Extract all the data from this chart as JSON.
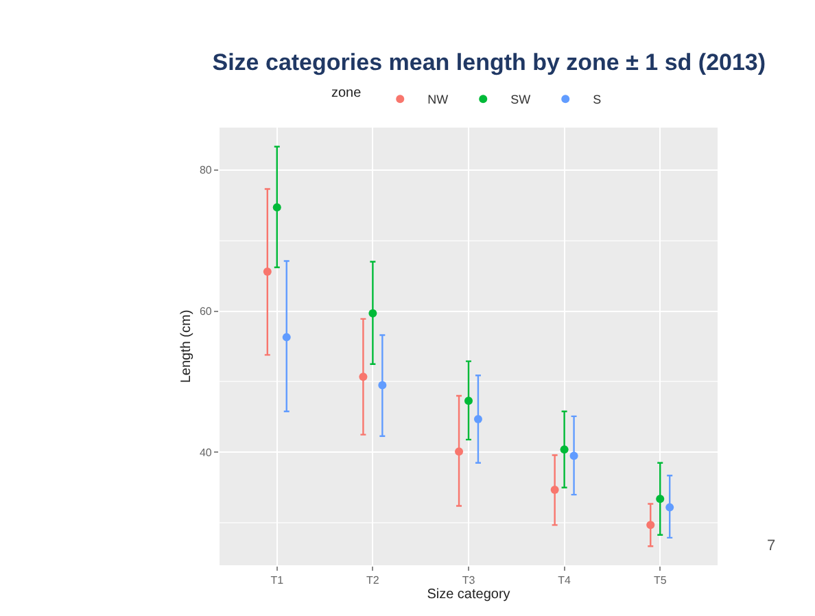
{
  "chart_data": {
    "type": "scatter",
    "title": "Size categories mean length by zone ± 1 sd (2013)",
    "xlabel": "Size category",
    "ylabel": "Length (cm)",
    "legend_title": "zone",
    "categories": [
      "T1",
      "T2",
      "T3",
      "T4",
      "T5"
    ],
    "series": [
      {
        "name": "NW",
        "color": "#f8766d",
        "values": [
          65.6,
          50.7,
          40.1,
          34.7,
          29.7
        ],
        "errors": [
          [
            53.8,
            77.3
          ],
          [
            42.5,
            58.9
          ],
          [
            32.4,
            48.0
          ],
          [
            29.7,
            39.6
          ],
          [
            26.7,
            32.7
          ]
        ]
      },
      {
        "name": "SW",
        "color": "#00ba38",
        "values": [
          74.7,
          59.7,
          47.3,
          40.4,
          33.4
        ],
        "errors": [
          [
            66.2,
            83.3
          ],
          [
            52.5,
            67.0
          ],
          [
            41.8,
            52.9
          ],
          [
            35.0,
            45.8
          ],
          [
            28.3,
            38.5
          ]
        ]
      },
      {
        "name": "S",
        "color": "#619cff",
        "values": [
          56.3,
          49.5,
          44.7,
          39.5,
          32.2
        ],
        "errors": [
          [
            45.8,
            67.1
          ],
          [
            42.3,
            56.6
          ],
          [
            38.5,
            50.9
          ],
          [
            34.0,
            45.1
          ],
          [
            27.9,
            36.7
          ]
        ]
      }
    ],
    "ylim": [
      24,
      86
    ],
    "yticks": [
      40,
      60,
      80
    ],
    "grid": true,
    "legend": "top",
    "marker": "circle",
    "annotations": [
      "7"
    ]
  }
}
